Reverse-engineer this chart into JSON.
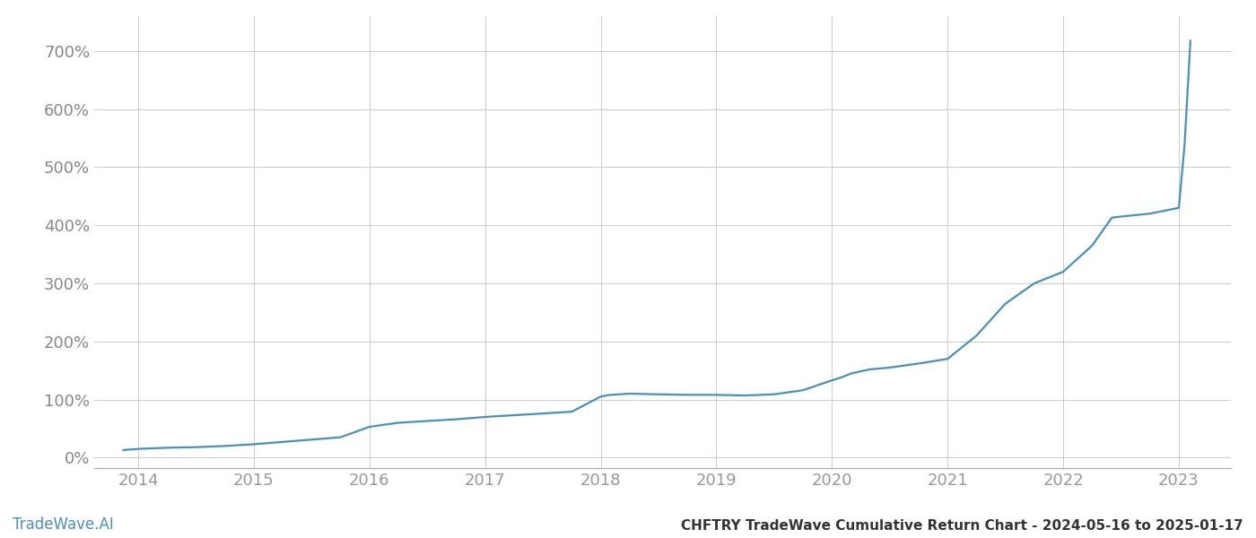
{
  "title": "CHFTRY TradeWave Cumulative Return Chart - 2024-05-16 to 2025-01-17",
  "watermark": "TradeWave.AI",
  "line_color": "#4a90b8",
  "background_color": "#ffffff",
  "grid_color": "#cccccc",
  "x_tick_color": "#999999",
  "y_tick_color": "#888888",
  "x_ticks": [
    2014,
    2015,
    2016,
    2017,
    2018,
    2019,
    2020,
    2021,
    2022,
    2023
  ],
  "y_ticks": [
    0,
    100,
    200,
    300,
    400,
    500,
    600,
    700
  ],
  "xlim": [
    2013.62,
    2023.45
  ],
  "ylim": [
    -18,
    760
  ],
  "data_x": [
    2013.87,
    2014.0,
    2014.25,
    2014.5,
    2014.75,
    2015.0,
    2015.25,
    2015.5,
    2015.75,
    2016.0,
    2016.25,
    2016.5,
    2016.75,
    2017.0,
    2017.25,
    2017.5,
    2017.75,
    2018.0,
    2018.08,
    2018.25,
    2018.5,
    2018.75,
    2019.0,
    2019.25,
    2019.5,
    2019.75,
    2020.0,
    2020.08,
    2020.17,
    2020.33,
    2020.5,
    2020.75,
    2021.0,
    2021.25,
    2021.5,
    2021.75,
    2022.0,
    2022.25,
    2022.42,
    2022.5,
    2022.75,
    2023.0,
    2023.05,
    2023.1
  ],
  "data_y": [
    13,
    15,
    17,
    18,
    20,
    23,
    27,
    31,
    35,
    53,
    60,
    63,
    66,
    70,
    73,
    76,
    79,
    105,
    108,
    110,
    109,
    108,
    108,
    107,
    109,
    116,
    133,
    138,
    145,
    152,
    155,
    162,
    170,
    210,
    265,
    300,
    320,
    365,
    413,
    415,
    420,
    430,
    540,
    718
  ],
  "title_fontsize": 11,
  "watermark_fontsize": 12,
  "tick_fontsize": 13,
  "line_width": 1.6
}
